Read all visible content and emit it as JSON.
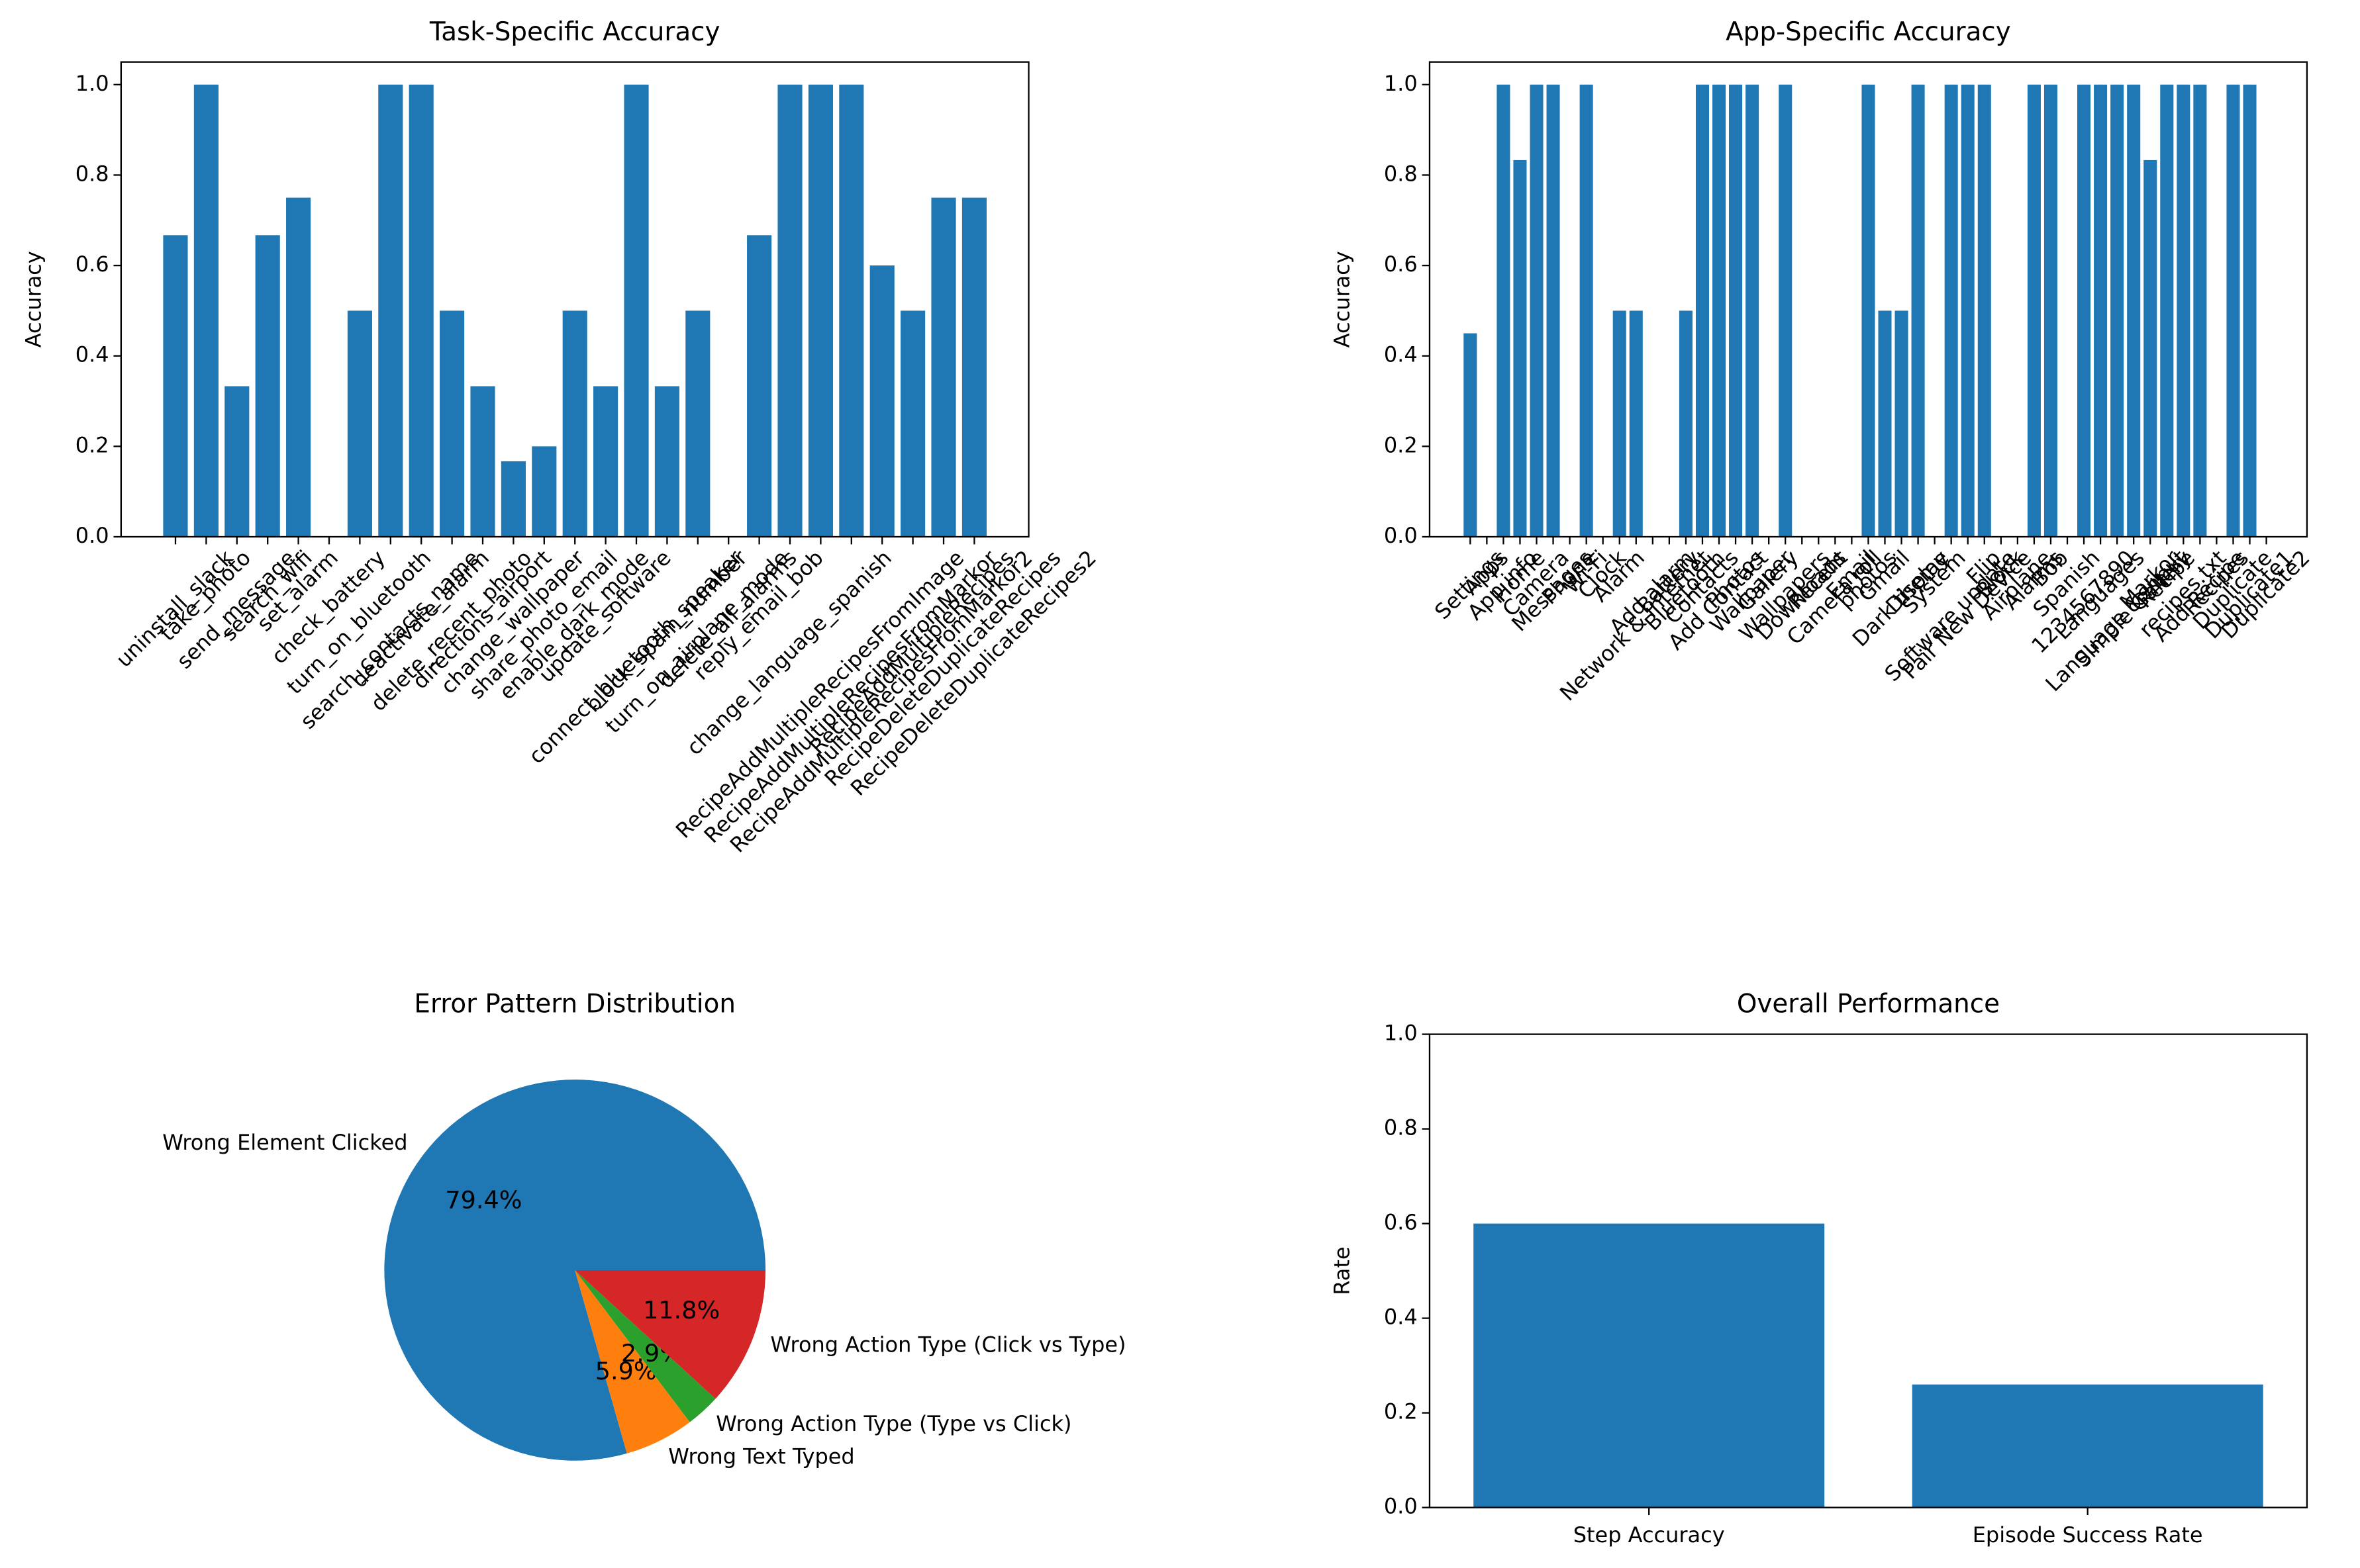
{
  "chart_data": [
    {
      "type": "bar",
      "title": "Task-Specific Accuracy",
      "ylabel": "Accuracy",
      "color": "#1f77b4",
      "categories": [
        "uninstall_slack",
        "take_photo",
        "send_message",
        "search_wifi",
        "set_alarm",
        "check_battery",
        "turn_on_bluetooth",
        "search_contacts_name",
        "deactivate_alarm",
        "delete_recent_photo",
        "directions_airport",
        "change_wallpaper",
        "share_photo_email",
        "enable_dark_mode",
        "update_software",
        "connect_bluetooth_speaker",
        "block_spam_number",
        "turn_on_airplane_mode",
        "delete_all_alarms",
        "reply_email_bob",
        "change_language_spanish",
        "RecipeAddMultipleRecipesFromImage",
        "RecipeAddMultipleRecipesFromMarkor",
        "RecipeAddMultipleRecipesFromMarkor2",
        "RecipeAddMultipleRecipes",
        "RecipeDeleteDuplicateRecipes",
        "RecipeDeleteDuplicateRecipes2"
      ],
      "values": [
        0.667,
        1,
        0.333,
        0.667,
        0.75,
        0,
        0.5,
        1,
        1,
        0.5,
        0.333,
        0.167,
        0.2,
        0.5,
        0.333,
        1,
        0.333,
        0.5,
        0,
        0.667,
        1,
        1,
        1,
        0.6,
        0.5,
        0.75,
        0.75
      ],
      "ylim": [
        0,
        1.05
      ],
      "yticks": [
        {
          "value": 0,
          "label": "0.0"
        },
        0.2,
        0.4,
        0.6,
        0.8,
        {
          "value": 1,
          "label": "1.0"
        }
      ],
      "rotate_labels": true
    },
    {
      "type": "bar",
      "title": "App-Specific Accuracy",
      "ylabel": "Accuracy",
      "color": "#1f77b4",
      "categories": [
        "Settings",
        "Apps",
        "App info",
        "Home",
        "Camera",
        "Messages",
        "Phone",
        "Wi-Fi",
        "Clock",
        "Alarm",
        "Network & internet",
        "Add alarm",
        "Battery",
        "Bluetooth",
        "Contacts",
        "Add Contact",
        "Photos",
        "Wallpaper",
        "Gallery",
        "Wallpapers",
        "Downloads",
        "Recent",
        "Camera roll",
        "Email",
        "photos",
        "Gmail",
        "Dark theme",
        "Display",
        "System",
        "Software update",
        "Pair New Device",
        "Flip",
        "Block",
        "Airplane",
        "Alarms",
        "Bob",
        "Spanish",
        "1234567890",
        "Languages",
        "Language & input",
        "Simple Gallery",
        "Markor",
        "Recipe",
        "recipes.txt",
        "Add Recipe",
        "Recipes",
        "Duplicate",
        "Duplicate1",
        "Duplicate2"
      ],
      "values": [
        0.45,
        0,
        1,
        0.833,
        1,
        1,
        0,
        1,
        0,
        0.5,
        0.5,
        0,
        0,
        0.5,
        1,
        1,
        1,
        1,
        0,
        1,
        0,
        0,
        0,
        0,
        1,
        0.5,
        0.5,
        1,
        0,
        1,
        1,
        1,
        0,
        0,
        1,
        1,
        0,
        1,
        1,
        1,
        1,
        0.833,
        1,
        1,
        1,
        0,
        1,
        1,
        0
      ],
      "ylim": [
        0,
        1.05
      ],
      "yticks": [
        {
          "value": 0,
          "label": "0.0"
        },
        0.2,
        0.4,
        0.6,
        0.8,
        {
          "value": 1,
          "label": "1.0"
        }
      ],
      "rotate_labels": true
    },
    {
      "type": "pie",
      "title": "Error Pattern Distribution",
      "categories": [
        "Wrong Element Clicked",
        "Wrong Text Typed",
        "Wrong Action Type (Type vs Click)",
        "Wrong Action Type (Click vs Type)"
      ],
      "values": [
        79.4,
        5.9,
        2.9,
        11.8
      ],
      "value_labels": [
        "79.4%",
        "5.9%",
        "2.9%",
        "11.8%"
      ],
      "colors": [
        "#1f77b4",
        "#ff7f0e",
        "#2ca02c",
        "#d62728"
      ]
    },
    {
      "type": "bar",
      "title": "Overall Performance",
      "ylabel": "Rate",
      "color": "#1f77b4",
      "categories": [
        "Step Accuracy",
        "Episode Success Rate"
      ],
      "values": [
        0.6,
        0.26
      ],
      "ylim": [
        0,
        1
      ],
      "yticks": [
        {
          "value": 0,
          "label": "0.0"
        },
        0.2,
        0.4,
        0.6,
        0.8,
        {
          "value": 1,
          "label": "1.0"
        }
      ],
      "rotate_labels": false
    }
  ]
}
